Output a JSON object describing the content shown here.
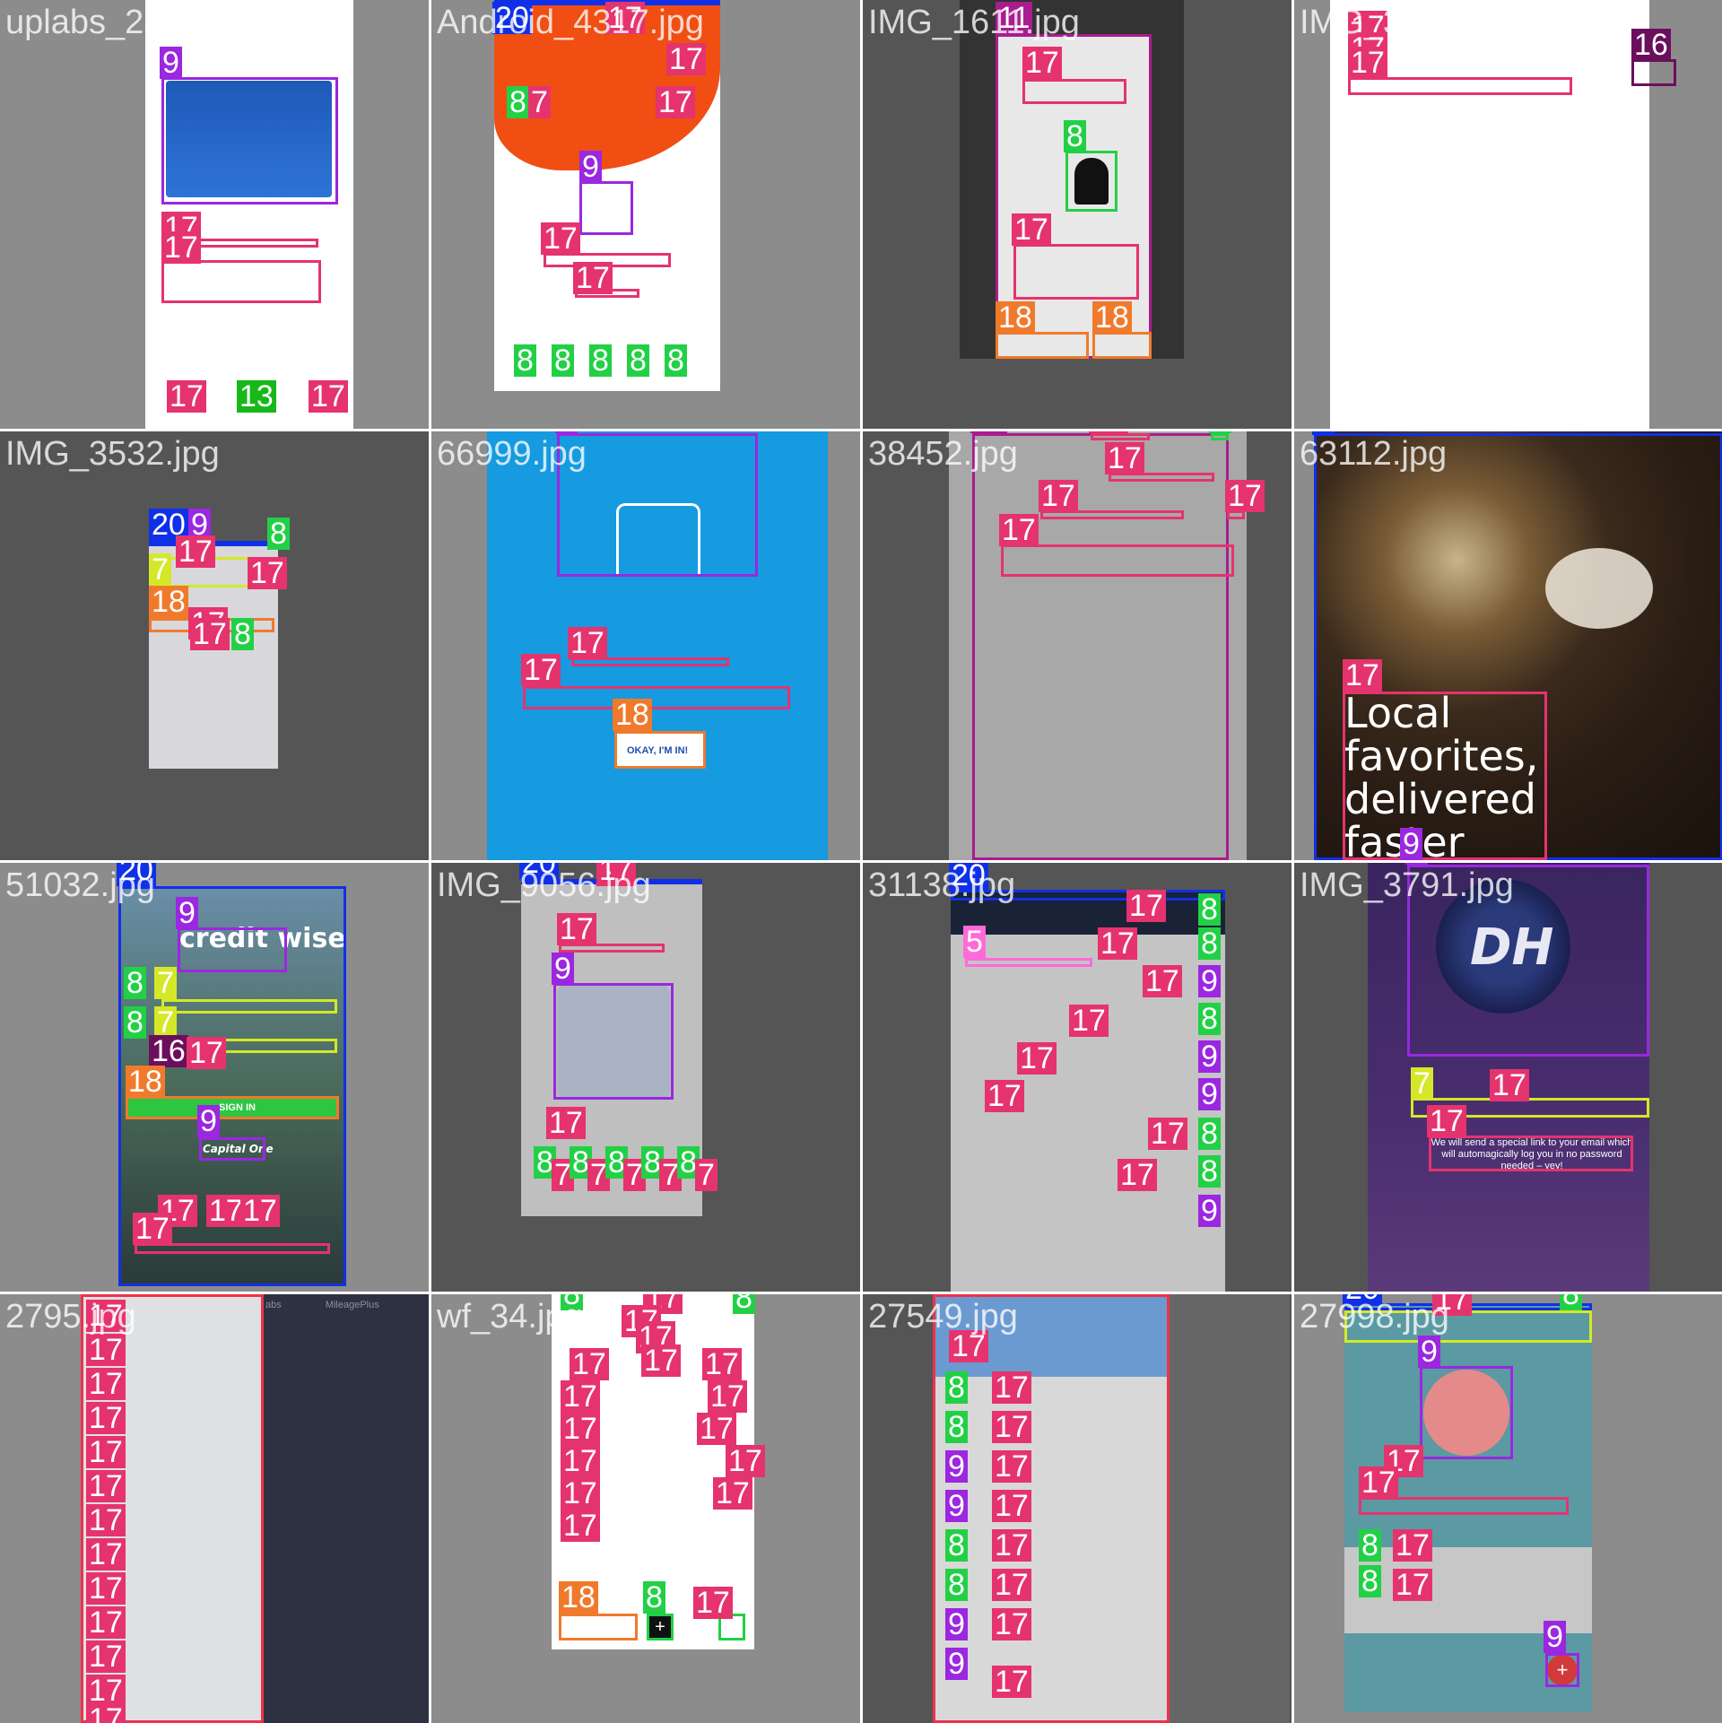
{
  "cells": [
    {
      "file": "uplabs_233.jpg",
      "labels": [
        "9",
        "17",
        "17",
        "17",
        "13",
        "17"
      ]
    },
    {
      "file": "Android_4317.jpg",
      "labels": [
        "20",
        "17",
        "17",
        "17",
        "8",
        "7",
        "9",
        "17",
        "17",
        "8",
        "8",
        "8",
        "8",
        "8"
      ]
    },
    {
      "file": "IMG_1611.jpg",
      "labels": [
        "11",
        "17",
        "8",
        "17",
        "18",
        "18"
      ]
    },
    {
      "file": "IMG_3575.jpg",
      "labels": [
        "17",
        "17",
        "17",
        "16"
      ]
    },
    {
      "file": "IMG_3532.jpg",
      "labels": [
        "20",
        "9",
        "8",
        "7",
        "17",
        "17",
        "18",
        "17",
        "17",
        "8"
      ]
    },
    {
      "file": "66999.jpg",
      "labels": [
        "9",
        "17",
        "17",
        "18"
      ],
      "button": "OKAY, I'M IN!"
    },
    {
      "file": "38452.jpg",
      "labels": [
        "11",
        "17",
        "8",
        "17",
        "17",
        "17",
        "17"
      ]
    },
    {
      "file": "63112.jpg",
      "labels": [
        "0",
        "17",
        "9"
      ],
      "headline": "Local favorites, delivered faster"
    },
    {
      "file": "51032.jpg",
      "labels": [
        "20",
        "9",
        "8",
        "7",
        "8",
        "7",
        "16",
        "17",
        "18",
        "9",
        "17",
        "17",
        "17",
        "17"
      ],
      "logo": "credit wise",
      "button": "SIGN IN",
      "brand": "Capital One"
    },
    {
      "file": "IMG_9056.jpg",
      "labels": [
        "20",
        "17",
        "17",
        "9",
        "17",
        "8",
        "7",
        "8",
        "7",
        "8",
        "7",
        "8",
        "7",
        "8",
        "7"
      ]
    },
    {
      "file": "31138.jpg",
      "labels": [
        "20",
        "17",
        "8",
        "5",
        "17",
        "8",
        "17",
        "9",
        "8",
        "17",
        "9",
        "17",
        "9",
        "17",
        "8",
        "17",
        "8",
        "17",
        "9"
      ]
    },
    {
      "file": "IMG_3791.jpg",
      "labels": [
        "9",
        "7",
        "17",
        "17"
      ],
      "logo": "DH",
      "body": "We will send a special link to your email which will automagically log you in no password needed – yey!"
    },
    {
      "file": "2795.jpg",
      "labels": [
        "6",
        "7",
        "17",
        "17",
        "17",
        "17",
        "17",
        "17",
        "17",
        "17",
        "17",
        "17",
        "17",
        "17",
        "17"
      ],
      "tabs": [
        "abs",
        "MileagePlus"
      ]
    },
    {
      "file": "wf_34.jpg",
      "labels": [
        "8",
        "17",
        "8",
        "17",
        "17",
        "17",
        "17",
        "17",
        "17",
        "17",
        "17",
        "17",
        "17",
        "17",
        "17",
        "17",
        "17",
        "18",
        "8",
        "17"
      ]
    },
    {
      "file": "27549.jpg",
      "labels": [
        "6",
        "9",
        "17",
        "8",
        "17",
        "8",
        "17",
        "9",
        "17",
        "9",
        "17",
        "8",
        "17",
        "8",
        "17",
        "9",
        "17",
        "9",
        "17"
      ]
    },
    {
      "file": "27998.jpg",
      "labels": [
        "20",
        "17",
        "8",
        "9",
        "17",
        "17",
        "8",
        "17",
        "8",
        "17",
        "9"
      ]
    }
  ],
  "colors": {
    "c17": "#e5336e",
    "c8": "#22d046",
    "c9": "#9b27e0",
    "c18": "#f07a2c",
    "c20": "#1030e8",
    "c11": "#a81d8f",
    "c7": "#d4e827",
    "c16": "#6b0f5c"
  }
}
